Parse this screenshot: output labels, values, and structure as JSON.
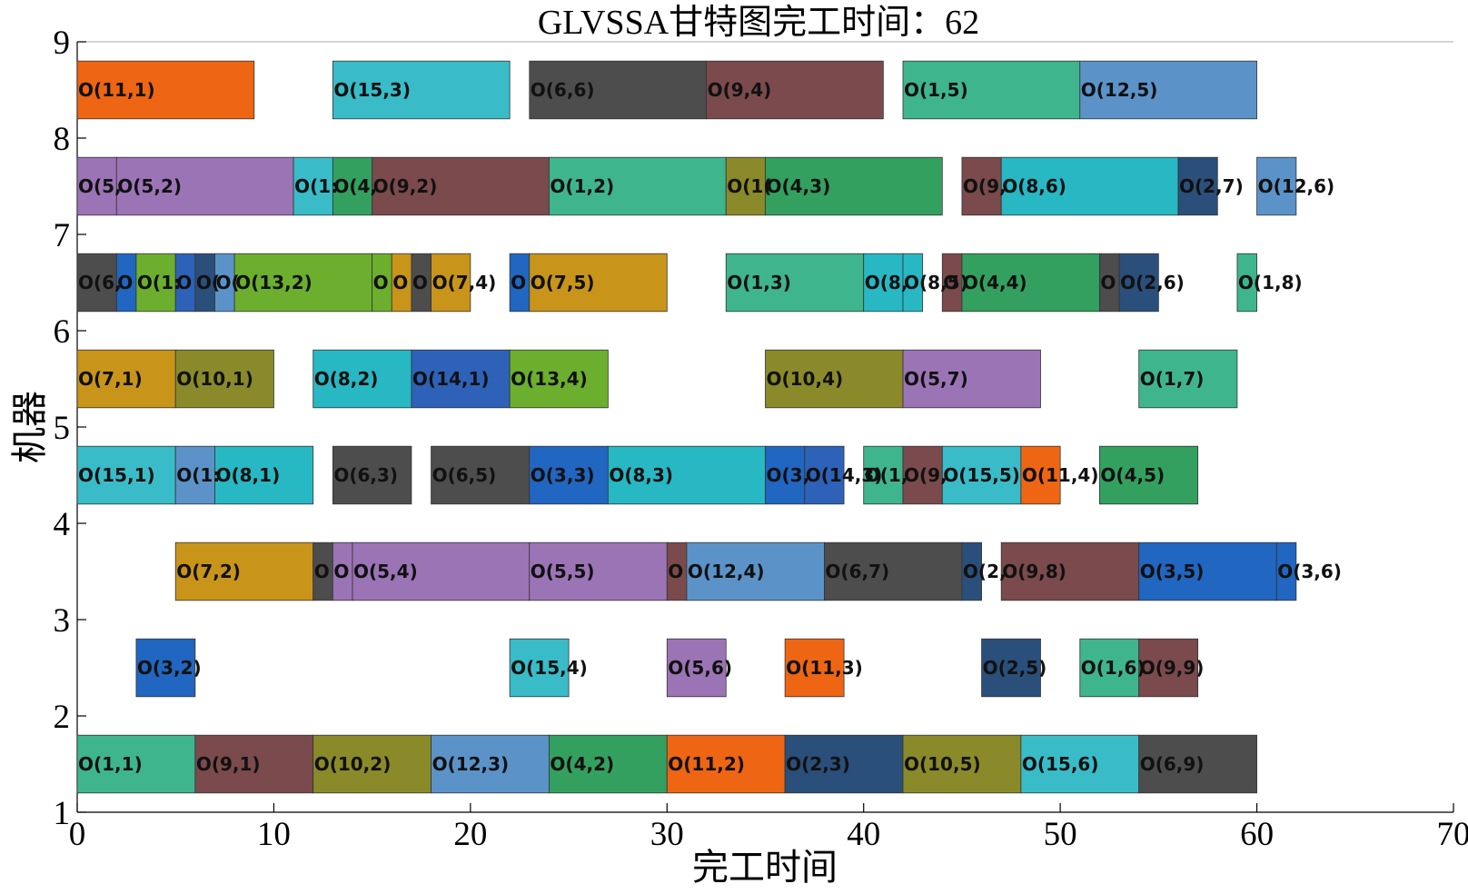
{
  "chart_data": {
    "type": "gantt",
    "title": "GLVSSA甘特图完工时间：62",
    "xlabel": "完工时间",
    "ylabel": "机器",
    "xlim": [
      0,
      70
    ],
    "ylim": [
      1,
      9
    ],
    "xticks": [
      "0",
      "10",
      "20",
      "30",
      "40",
      "50",
      "60",
      "70"
    ],
    "yticks": [
      "1",
      "2",
      "3",
      "4",
      "5",
      "6",
      "7",
      "8",
      "9"
    ],
    "grid": false,
    "colors": {
      "1": "#3fb58e",
      "2": "#2a4f7a",
      "3": "#2166c0",
      "4": "#33a060",
      "5": "#9b74b5",
      "6": "#4d4d4d",
      "7": "#c8951a",
      "8": "#27b8c4",
      "9": "#7a4a4c",
      "10": "#8a8a2a",
      "11": "#ee6514",
      "12": "#5b93c9",
      "13": "#6caf2e",
      "14": "#2d62b8",
      "15": "#39bcc8"
    },
    "machines": [
      {
        "machine": 1,
        "ops": [
          {
            "label": "O(1,1)",
            "job": 1,
            "start": 0,
            "end": 6
          },
          {
            "label": "O(9,1)",
            "job": 9,
            "start": 6,
            "end": 12
          },
          {
            "label": "O(10,2)",
            "job": 10,
            "start": 12,
            "end": 18
          },
          {
            "label": "O(12,3)",
            "job": 12,
            "start": 18,
            "end": 24
          },
          {
            "label": "O(4,2)",
            "job": 4,
            "start": 24,
            "end": 30
          },
          {
            "label": "O(11,2)",
            "job": 11,
            "start": 30,
            "end": 36
          },
          {
            "label": "O(2,3)",
            "job": 2,
            "start": 36,
            "end": 42
          },
          {
            "label": "O(10,5)",
            "job": 10,
            "start": 42,
            "end": 48
          },
          {
            "label": "O(15,6)",
            "job": 15,
            "start": 48,
            "end": 54
          },
          {
            "label": "O(6,9)",
            "job": 6,
            "start": 54,
            "end": 60
          }
        ]
      },
      {
        "machine": 2,
        "ops": [
          {
            "label": "O(3,2)",
            "job": 3,
            "start": 3,
            "end": 6
          },
          {
            "label": "O(15,4)",
            "job": 15,
            "start": 22,
            "end": 25
          },
          {
            "label": "O(5,6)",
            "job": 5,
            "start": 30,
            "end": 33
          },
          {
            "label": "O(11,3)",
            "job": 11,
            "start": 36,
            "end": 39
          },
          {
            "label": "O(2,5)",
            "job": 2,
            "start": 46,
            "end": 49
          },
          {
            "label": "O(1,6)",
            "job": 1,
            "start": 51,
            "end": 54
          },
          {
            "label": "O(9,9)",
            "job": 9,
            "start": 54,
            "end": 57
          }
        ]
      },
      {
        "machine": 3,
        "ops": [
          {
            "label": "O(7,2)",
            "job": 7,
            "start": 5,
            "end": 12
          },
          {
            "label": "O",
            "job": 6,
            "start": 12,
            "end": 13
          },
          {
            "label": "O",
            "job": 5,
            "start": 13,
            "end": 14
          },
          {
            "label": "O(5,4)",
            "job": 5,
            "start": 14,
            "end": 23
          },
          {
            "label": "O(5,5)",
            "job": 5,
            "start": 23,
            "end": 30
          },
          {
            "label": "O",
            "job": 9,
            "start": 30,
            "end": 31
          },
          {
            "label": "O(12,4)",
            "job": 12,
            "start": 31,
            "end": 38
          },
          {
            "label": "O(6,7)",
            "job": 6,
            "start": 38,
            "end": 45
          },
          {
            "label": "O(2,",
            "job": 2,
            "start": 45,
            "end": 46
          },
          {
            "label": "O(9,8)",
            "job": 9,
            "start": 47,
            "end": 54
          },
          {
            "label": "O(3,5)",
            "job": 3,
            "start": 54,
            "end": 61
          },
          {
            "label": "O(3,6)",
            "job": 3,
            "start": 61,
            "end": 62
          }
        ]
      },
      {
        "machine": 4,
        "ops": [
          {
            "label": "O(15,1)",
            "job": 15,
            "start": 0,
            "end": 5
          },
          {
            "label": "O(1:",
            "job": 12,
            "start": 5,
            "end": 7
          },
          {
            "label": "O(8,1)",
            "job": 8,
            "start": 7,
            "end": 12
          },
          {
            "label": "O(6,3)",
            "job": 6,
            "start": 13,
            "end": 17
          },
          {
            "label": "O(6,5)",
            "job": 6,
            "start": 18,
            "end": 23
          },
          {
            "label": "O(3,3)",
            "job": 3,
            "start": 23,
            "end": 27
          },
          {
            "label": "O(8,3)",
            "job": 8,
            "start": 27,
            "end": 35
          },
          {
            "label": "O(3,",
            "job": 3,
            "start": 35,
            "end": 37
          },
          {
            "label": "O(14,3)",
            "job": 14,
            "start": 37,
            "end": 39
          },
          {
            "label": "O(1,",
            "job": 1,
            "start": 40,
            "end": 42
          },
          {
            "label": "O(9,",
            "job": 9,
            "start": 42,
            "end": 44
          },
          {
            "label": "O(15,5)",
            "job": 15,
            "start": 44,
            "end": 48
          },
          {
            "label": "O(11,4)",
            "job": 11,
            "start": 48,
            "end": 50
          },
          {
            "label": "O(4,5)",
            "job": 4,
            "start": 52,
            "end": 57
          }
        ]
      },
      {
        "machine": 5,
        "ops": [
          {
            "label": "O(7,1)",
            "job": 7,
            "start": 0,
            "end": 5
          },
          {
            "label": "O(10,1)",
            "job": 10,
            "start": 5,
            "end": 10
          },
          {
            "label": "O(8,2)",
            "job": 8,
            "start": 12,
            "end": 17
          },
          {
            "label": "O(14,1)",
            "job": 14,
            "start": 17,
            "end": 22
          },
          {
            "label": "O(13,4)",
            "job": 13,
            "start": 22,
            "end": 27
          },
          {
            "label": "O(10,4)",
            "job": 10,
            "start": 35,
            "end": 42
          },
          {
            "label": "O(5,7)",
            "job": 5,
            "start": 42,
            "end": 49
          },
          {
            "label": "O(1,7)",
            "job": 1,
            "start": 54,
            "end": 59
          }
        ]
      },
      {
        "machine": 6,
        "ops": [
          {
            "label": "O(6,",
            "job": 6,
            "start": 0,
            "end": 2
          },
          {
            "label": "O",
            "job": 3,
            "start": 2,
            "end": 3
          },
          {
            "label": "O(1:",
            "job": 13,
            "start": 3,
            "end": 5
          },
          {
            "label": "O",
            "job": 14,
            "start": 5,
            "end": 6
          },
          {
            "label": "O(",
            "job": 2,
            "start": 6,
            "end": 7
          },
          {
            "label": "O(",
            "job": 12,
            "start": 7,
            "end": 8
          },
          {
            "label": "O(13,2)",
            "job": 13,
            "start": 8,
            "end": 15
          },
          {
            "label": "O",
            "job": 13,
            "start": 15,
            "end": 16
          },
          {
            "label": "O",
            "job": 7,
            "start": 16,
            "end": 17
          },
          {
            "label": "O",
            "job": 6,
            "start": 17,
            "end": 18
          },
          {
            "label": "O(7,4)",
            "job": 7,
            "start": 18,
            "end": 20
          },
          {
            "label": "O",
            "job": 3,
            "start": 22,
            "end": 23
          },
          {
            "label": "O(7,5)",
            "job": 7,
            "start": 23,
            "end": 30
          },
          {
            "label": "O(1,3)",
            "job": 1,
            "start": 33,
            "end": 40
          },
          {
            "label": "O(8,",
            "job": 8,
            "start": 40,
            "end": 42
          },
          {
            "label": "O(8,5)",
            "job": 8,
            "start": 42,
            "end": 43
          },
          {
            "label": "O",
            "job": 9,
            "start": 44,
            "end": 45
          },
          {
            "label": "O(4,4)",
            "job": 4,
            "start": 45,
            "end": 52
          },
          {
            "label": "O",
            "job": 6,
            "start": 52,
            "end": 53
          },
          {
            "label": "O(2,6)",
            "job": 2,
            "start": 53,
            "end": 55
          },
          {
            "label": "O(1,8)",
            "job": 1,
            "start": 59,
            "end": 60
          }
        ]
      },
      {
        "machine": 7,
        "ops": [
          {
            "label": "O(5,",
            "job": 5,
            "start": 0,
            "end": 2
          },
          {
            "label": "O(5,2)",
            "job": 5,
            "start": 2,
            "end": 11
          },
          {
            "label": "O(1:",
            "job": 15,
            "start": 11,
            "end": 13
          },
          {
            "label": "O(4,",
            "job": 4,
            "start": 13,
            "end": 15
          },
          {
            "label": "O(9,2)",
            "job": 9,
            "start": 15,
            "end": 24
          },
          {
            "label": "O(1,2)",
            "job": 1,
            "start": 24,
            "end": 33
          },
          {
            "label": "O(1(",
            "job": 10,
            "start": 33,
            "end": 35
          },
          {
            "label": "O(4,3)",
            "job": 4,
            "start": 35,
            "end": 44
          },
          {
            "label": "O(9,",
            "job": 9,
            "start": 45,
            "end": 47
          },
          {
            "label": "O(8,6)",
            "job": 8,
            "start": 47,
            "end": 56
          },
          {
            "label": "O(2,7)",
            "job": 2,
            "start": 56,
            "end": 58
          },
          {
            "label": "O(12,6)",
            "job": 12,
            "start": 60,
            "end": 62
          }
        ]
      },
      {
        "machine": 8,
        "ops": [
          {
            "label": "O(11,1)",
            "job": 11,
            "start": 0,
            "end": 9
          },
          {
            "label": "O(15,3)",
            "job": 15,
            "start": 13,
            "end": 22
          },
          {
            "label": "O(6,6)",
            "job": 6,
            "start": 23,
            "end": 32
          },
          {
            "label": "O(9,4)",
            "job": 9,
            "start": 32,
            "end": 41
          },
          {
            "label": "O(1,5)",
            "job": 1,
            "start": 42,
            "end": 51
          },
          {
            "label": "O(12,5)",
            "job": 12,
            "start": 51,
            "end": 60
          }
        ]
      }
    ]
  }
}
